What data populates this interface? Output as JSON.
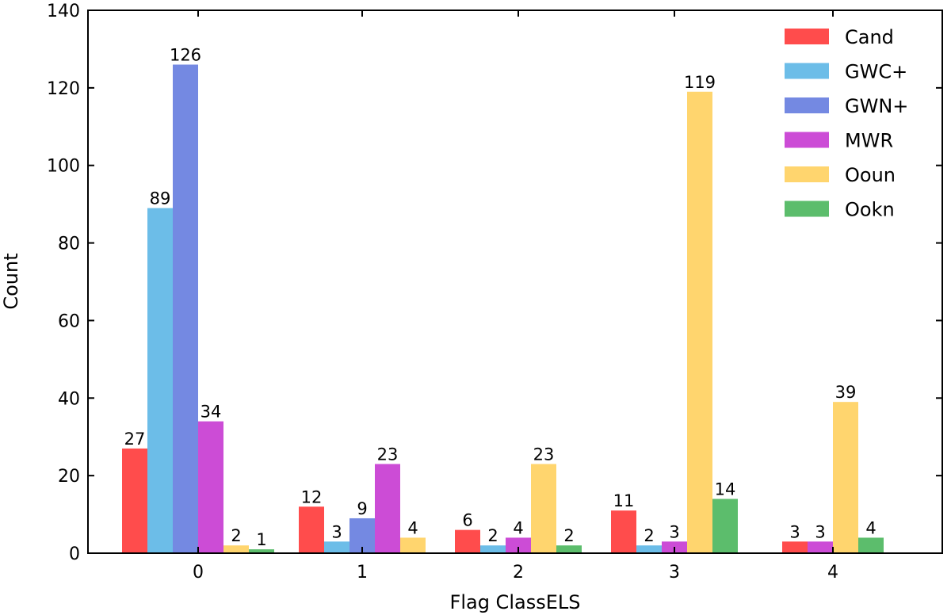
{
  "chart_data": {
    "type": "bar",
    "xlabel": "Flag ClassELS",
    "ylabel": "Count",
    "ylim": [
      0,
      140
    ],
    "yticks": [
      0,
      20,
      40,
      60,
      80,
      100,
      120,
      140
    ],
    "categories": [
      "0",
      "1",
      "2",
      "3",
      "4"
    ],
    "legend_position": "top-right",
    "grid": false,
    "series": [
      {
        "name": "Cand",
        "color": "#ff4c4c",
        "values": [
          27,
          12,
          6,
          11,
          3
        ]
      },
      {
        "name": "GWC+",
        "color": "#6cbde8",
        "values": [
          89,
          3,
          2,
          2,
          null
        ]
      },
      {
        "name": "GWN+",
        "color": "#7489e2",
        "values": [
          126,
          9,
          null,
          null,
          null
        ]
      },
      {
        "name": "MWR",
        "color": "#cc4cd6",
        "values": [
          34,
          23,
          4,
          3,
          3
        ]
      },
      {
        "name": "Ooun",
        "color": "#ffd56e",
        "values": [
          2,
          4,
          23,
          119,
          39
        ]
      },
      {
        "name": "Ookn",
        "color": "#5cbd6c",
        "values": [
          1,
          null,
          2,
          14,
          4
        ]
      }
    ]
  }
}
